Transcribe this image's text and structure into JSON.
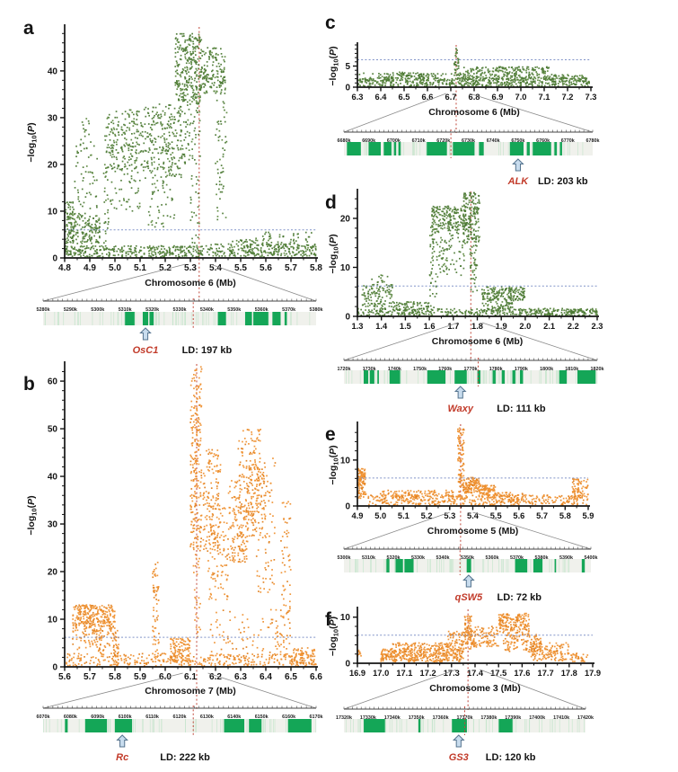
{
  "styles": {
    "green_point": "#4d7a35",
    "green_point2": "#5f8a41",
    "orange_point": "#ef9132",
    "orange_point2": "#e07f1d",
    "threshold_color": "#8093c8",
    "peak_line_color": "#c0473a",
    "gene_box_color": "#14a657",
    "gene_minor_line_color": "#c9e6cf",
    "track_bg_color": "#f0f1ec",
    "gene_label_color": "#c23b2a",
    "arrow_fill": "#c8dcee",
    "arrow_stroke": "#54738e",
    "axis_color": "#141414",
    "funnel_color": "#8a8a8a"
  },
  "chart_data": [
    {
      "panel": "a",
      "type": "scatter",
      "series_color": "green",
      "xlabel": "Chromosome 6 (Mb)",
      "ylabel": "-log10(P)",
      "xlim": [
        4.8,
        5.8
      ],
      "ylim": [
        0,
        49.4
      ],
      "xticks": [
        4.8,
        4.9,
        5.0,
        5.1,
        5.2,
        5.3,
        5.4,
        5.5,
        5.6,
        5.7,
        5.8
      ],
      "yticks": [
        0,
        10,
        20,
        30,
        40
      ],
      "ytick_minor": 2,
      "threshold_y": 6,
      "peak_x": 5.335,
      "zoom_region": [
        5.28,
        5.38
      ],
      "clusters": [
        [
          4.8,
          5.35,
          0.2,
          2.6,
          330
        ],
        [
          5.35,
          5.8,
          0.2,
          3.0,
          190
        ],
        [
          4.8,
          4.84,
          2.5,
          12,
          70
        ],
        [
          4.81,
          4.94,
          3,
          9.5,
          150
        ],
        [
          4.84,
          4.93,
          10,
          25,
          55
        ],
        [
          4.86,
          4.9,
          25,
          30,
          12
        ],
        [
          4.955,
          4.975,
          2,
          20,
          28
        ],
        [
          4.96,
          5.12,
          18,
          32,
          210
        ],
        [
          4.98,
          5.1,
          10,
          18,
          40
        ],
        [
          5.12,
          5.27,
          17,
          33,
          230
        ],
        [
          5.13,
          5.24,
          6,
          17,
          45
        ],
        [
          5.24,
          5.345,
          33,
          48,
          300
        ],
        [
          5.25,
          5.34,
          20,
          33,
          70
        ],
        [
          5.345,
          5.44,
          35,
          45,
          150
        ],
        [
          5.4,
          5.445,
          8,
          34,
          55
        ],
        [
          5.3,
          5.34,
          2,
          18,
          25
        ],
        [
          5.45,
          5.55,
          0.3,
          4,
          45
        ],
        [
          5.55,
          5.8,
          0.5,
          5.5,
          110
        ]
      ],
      "track": {
        "tick_labels": [
          "5280k",
          "5290k",
          "5300k",
          "5310k",
          "5320k",
          "5330k",
          "5340k",
          "5350k",
          "5360k",
          "5370k",
          "5380k"
        ],
        "range_kb": [
          5280,
          5380
        ],
        "genes": [
          [
            0.3,
            0.335
          ],
          [
            0.365,
            0.385
          ],
          [
            0.39,
            0.405
          ],
          [
            0.64,
            0.67
          ],
          [
            0.74,
            0.765
          ],
          [
            0.77,
            0.825
          ],
          [
            0.84,
            0.87
          ],
          [
            0.885,
            0.893
          ]
        ],
        "arrow_x": 0.375,
        "gene_label": "OsC1",
        "ld_label": "LD: 197 kb",
        "ld_x": 0.6
      }
    },
    {
      "panel": "b",
      "type": "scatter",
      "series_color": "orange",
      "xlabel": "Chromosome 7 (Mb)",
      "ylabel": "-log10(P)",
      "xlim": [
        5.6,
        6.6
      ],
      "ylim": [
        0,
        63.6
      ],
      "xticks": [
        5.6,
        5.7,
        5.8,
        5.9,
        6.0,
        6.1,
        6.2,
        6.3,
        6.4,
        6.5,
        6.6
      ],
      "yticks": [
        0,
        10,
        20,
        30,
        40,
        50,
        60
      ],
      "ytick_minor": 2,
      "threshold_y": 6.2,
      "peak_x": 6.125,
      "zoom_region": [
        6.07,
        6.17
      ],
      "clusters": [
        [
          5.6,
          6.6,
          0.2,
          2.8,
          380
        ],
        [
          5.63,
          5.8,
          8,
          13,
          260
        ],
        [
          5.63,
          5.8,
          3.5,
          8,
          70
        ],
        [
          5.725,
          5.755,
          3,
          8,
          30
        ],
        [
          5.795,
          5.815,
          0.5,
          8,
          40
        ],
        [
          5.95,
          5.975,
          3,
          22,
          60
        ],
        [
          6.02,
          6.1,
          0.8,
          6,
          110
        ],
        [
          6.1,
          6.145,
          25,
          63,
          230
        ],
        [
          6.11,
          6.14,
          6,
          25,
          30
        ],
        [
          6.15,
          6.22,
          24,
          46,
          140
        ],
        [
          6.17,
          6.25,
          14,
          34,
          100
        ],
        [
          6.25,
          6.33,
          22,
          40,
          150
        ],
        [
          6.29,
          6.38,
          27,
          50,
          130
        ],
        [
          6.33,
          6.4,
          30,
          42,
          90
        ],
        [
          6.36,
          6.44,
          14,
          44,
          80
        ],
        [
          6.46,
          6.5,
          4,
          35,
          60
        ],
        [
          6.18,
          6.5,
          3,
          12,
          90
        ],
        [
          6.5,
          6.6,
          0.3,
          4,
          55
        ]
      ],
      "track": {
        "tick_labels": [
          "6070k",
          "6080k",
          "6090k",
          "6100k",
          "6110k",
          "6120k",
          "6130k",
          "6140k",
          "6150k",
          "6160k",
          "6170k"
        ],
        "range_kb": [
          6070,
          6170
        ],
        "genes": [
          [
            0.08,
            0.09
          ],
          [
            0.154,
            0.234
          ],
          [
            0.263,
            0.326
          ],
          [
            0.663,
            0.737
          ],
          [
            0.754,
            0.8
          ],
          [
            0.897,
            0.983
          ]
        ],
        "arrow_x": 0.29,
        "gene_label": "Rc",
        "ld_label": "LD: 222 kb",
        "ld_x": 0.52
      }
    },
    {
      "panel": "c",
      "type": "scatter",
      "series_color": "green",
      "xlabel": "Chromosome 6 (Mb)",
      "ylabel": "-log10(P)",
      "xlim": [
        6.3,
        7.3
      ],
      "ylim": [
        0,
        10
      ],
      "xticks": [
        6.3,
        6.4,
        6.5,
        6.6,
        6.7,
        6.8,
        6.9,
        7.0,
        7.1,
        7.2,
        7.3
      ],
      "yticks": [
        0,
        5
      ],
      "ytick_minor": 1,
      "threshold_y": 6.5,
      "peak_x": 6.723,
      "zoom_region": [
        6.68,
        6.78
      ],
      "clusters": [
        [
          6.3,
          7.3,
          0.15,
          2.2,
          500
        ],
        [
          6.3,
          6.75,
          1.5,
          3.4,
          110
        ],
        [
          6.75,
          7.12,
          1.8,
          4.8,
          250
        ],
        [
          7.12,
          7.28,
          1.2,
          3,
          70
        ],
        [
          6.712,
          6.735,
          2.5,
          7.5,
          28
        ],
        [
          6.718,
          6.728,
          7.5,
          9.3,
          5
        ],
        [
          6.42,
          6.52,
          2.2,
          3.6,
          22
        ],
        [
          6.56,
          6.62,
          2,
          3.2,
          15
        ]
      ],
      "track": {
        "tick_labels": [
          "6680k",
          "6690k",
          "6700k",
          "6710k",
          "6720k",
          "6730k",
          "6740k",
          "6750k",
          "6760k",
          "6770k",
          "6780k"
        ],
        "range_kb": [
          6680,
          6780
        ],
        "genes": [
          [
            0.012,
            0.068
          ],
          [
            0.099,
            0.148
          ],
          [
            0.16,
            0.191
          ],
          [
            0.201,
            0.21
          ],
          [
            0.219,
            0.228
          ],
          [
            0.333,
            0.414
          ],
          [
            0.438,
            0.525
          ],
          [
            0.543,
            0.562
          ],
          [
            0.667,
            0.722
          ],
          [
            0.735,
            0.747
          ],
          [
            0.759,
            0.833
          ],
          [
            0.846,
            0.856
          ],
          [
            0.868,
            0.877
          ]
        ],
        "arrow_x": 0.7,
        "gene_label": "ALK",
        "ld_label": "LD: 203 kb",
        "ld_x": 0.88
      }
    },
    {
      "panel": "d",
      "type": "scatter",
      "series_color": "green",
      "xlabel": "Chromosome 6 (Mb)",
      "ylabel": "-log10(P)",
      "xlim": [
        1.3,
        2.3
      ],
      "ylim": [
        0,
        25.5
      ],
      "xticks": [
        1.3,
        1.4,
        1.5,
        1.6,
        1.7,
        1.8,
        1.9,
        2.0,
        2.1,
        2.2,
        2.3
      ],
      "yticks": [
        0,
        10,
        20
      ],
      "ytick_minor": 2,
      "threshold_y": 6.2,
      "peak_x": 1.773,
      "zoom_region": [
        1.72,
        1.82
      ],
      "clusters": [
        [
          1.3,
          2.3,
          0.1,
          1.6,
          320
        ],
        [
          1.32,
          1.45,
          1.5,
          6.5,
          120
        ],
        [
          1.36,
          1.43,
          6.5,
          8.5,
          12
        ],
        [
          1.45,
          1.62,
          0.4,
          3,
          90
        ],
        [
          1.6,
          1.63,
          4,
          19,
          45
        ],
        [
          1.61,
          1.755,
          17.5,
          22.5,
          190
        ],
        [
          1.63,
          1.75,
          8,
          17.5,
          80
        ],
        [
          1.74,
          1.81,
          15,
          25.3,
          170
        ],
        [
          1.77,
          1.8,
          5,
          15,
          40
        ],
        [
          1.82,
          2.0,
          3.2,
          6,
          170
        ],
        [
          1.82,
          1.95,
          1,
          3.2,
          60
        ],
        [
          2.0,
          2.3,
          0.15,
          1.5,
          100
        ]
      ],
      "track": {
        "tick_labels": [
          "1720k",
          "1730k",
          "1740k",
          "1750k",
          "1760k",
          "1770k",
          "1780k",
          "1790k",
          "1800k",
          "1810k",
          "1820k"
        ],
        "range_kb": [
          1720,
          1820
        ],
        "genes": [
          [
            0.078,
            0.096
          ],
          [
            0.102,
            0.12
          ],
          [
            0.132,
            0.138
          ],
          [
            0.18,
            0.222
          ],
          [
            0.329,
            0.401
          ],
          [
            0.437,
            0.485
          ],
          [
            0.527,
            0.539
          ],
          [
            0.587,
            0.599
          ],
          [
            0.623,
            0.635
          ],
          [
            0.665,
            0.677
          ],
          [
            0.695,
            0.707
          ],
          [
            0.85,
            0.88
          ],
          [
            0.922,
            0.994
          ]
        ],
        "arrow_x": 0.46,
        "gene_label": "Waxy",
        "ld_label": "LD: 111 kb",
        "ld_x": 0.7
      }
    },
    {
      "panel": "e",
      "type": "scatter",
      "series_color": "orange",
      "xlabel": "Chromosome 5 (Mb)",
      "ylabel": "-log10(P)",
      "xlim": [
        4.9,
        5.9
      ],
      "ylim": [
        0,
        17.8
      ],
      "xticks": [
        4.9,
        5.0,
        5.1,
        5.2,
        5.3,
        5.4,
        5.5,
        5.6,
        5.7,
        5.8,
        5.9
      ],
      "yticks": [
        0,
        10
      ],
      "ytick_minor": 2,
      "threshold_y": 6.1,
      "peak_x": 5.347,
      "zoom_region": [
        5.3,
        5.4
      ],
      "clusters": [
        [
          4.9,
          4.935,
          4.5,
          8.2,
          80
        ],
        [
          4.9,
          4.94,
          1.5,
          4.5,
          30
        ],
        [
          4.94,
          5.9,
          0.2,
          2.4,
          420
        ],
        [
          5.0,
          5.32,
          2,
          3.4,
          90
        ],
        [
          5.335,
          5.362,
          3,
          17,
          90
        ],
        [
          5.36,
          5.43,
          2.8,
          6.2,
          120
        ],
        [
          5.43,
          5.5,
          1.8,
          4.6,
          90
        ],
        [
          5.5,
          5.62,
          0.8,
          3,
          60
        ],
        [
          5.83,
          5.9,
          1.5,
          6,
          70
        ]
      ],
      "track": {
        "tick_labels": [
          "5300k",
          "5310k",
          "5320k",
          "5330k",
          "5340k",
          "5350k",
          "5360k",
          "5370k",
          "5380k",
          "5390k",
          "5400k"
        ],
        "range_kb": [
          5300,
          5400
        ],
        "genes": [
          [
            0.172,
            0.184
          ],
          [
            0.209,
            0.239
          ],
          [
            0.245,
            0.282
          ],
          [
            0.497,
            0.515
          ],
          [
            0.693,
            0.742
          ],
          [
            0.767,
            0.804
          ],
          [
            0.853,
            0.859
          ],
          [
            0.963,
            0.975
          ]
        ],
        "arrow_x": 0.505,
        "gene_label": "qSW5",
        "ld_label": "LD: 72 kb",
        "ld_x": 0.71
      }
    },
    {
      "panel": "f",
      "type": "scatter",
      "series_color": "orange",
      "xlabel": "Chromosome 3 (Mb)",
      "ylabel": "-log10(P)",
      "xlim": [
        16.9,
        17.9
      ],
      "ylim": [
        0,
        11.7
      ],
      "xticks": [
        16.9,
        17.0,
        17.1,
        17.2,
        17.3,
        17.4,
        17.5,
        17.6,
        17.7,
        17.8,
        17.9
      ],
      "yticks": [
        0,
        10
      ],
      "ytick_minor": 2,
      "threshold_y": 6.1,
      "peak_x": 17.37,
      "zoom_region": [
        17.32,
        17.42
      ],
      "clusters": [
        [
          16.9,
          16.92,
          1.5,
          2.8,
          10
        ],
        [
          17.0,
          17.35,
          0.3,
          3.2,
          400
        ],
        [
          17.05,
          17.3,
          3.2,
          4.4,
          70
        ],
        [
          17.28,
          17.4,
          3,
          7,
          110
        ],
        [
          17.355,
          17.385,
          6,
          10.4,
          42
        ],
        [
          17.38,
          17.5,
          3.5,
          8,
          100
        ],
        [
          17.5,
          17.63,
          6.5,
          10.8,
          170
        ],
        [
          17.52,
          17.68,
          2.5,
          6.5,
          120
        ],
        [
          17.63,
          17.8,
          0.5,
          4.5,
          140
        ],
        [
          17.8,
          17.88,
          0.3,
          2.2,
          35
        ]
      ],
      "track": {
        "tick_labels": [
          "17320k",
          "17330k",
          "17340k",
          "17350k",
          "17360k",
          "17370k",
          "17380k",
          "17390k",
          "17400k",
          "17410k",
          "17420k"
        ],
        "range_kb": [
          17320,
          17420
        ],
        "genes": [
          [
            0.082,
            0.17
          ],
          [
            0.308,
            0.317
          ],
          [
            0.447,
            0.509
          ],
          [
            0.641,
            0.698
          ]
        ],
        "arrow_x": 0.475,
        "gene_label": "GS3",
        "ld_label": "LD: 120 kb",
        "ld_x": 0.69
      }
    }
  ]
}
